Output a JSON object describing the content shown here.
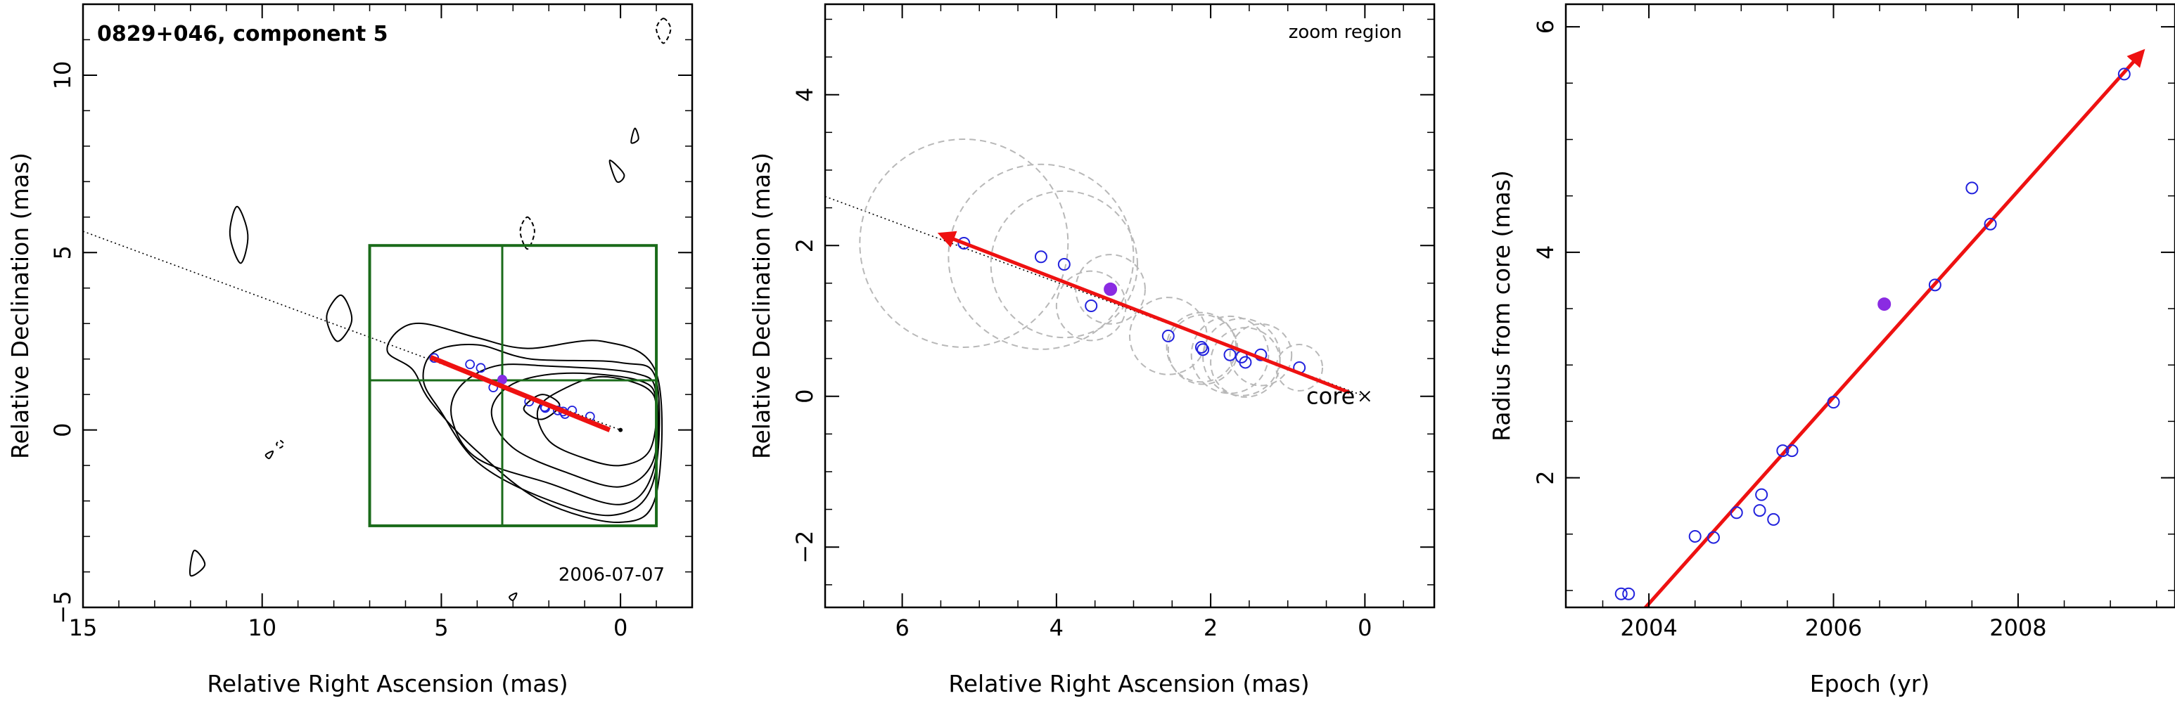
{
  "figure": {
    "colors": {
      "axes": "#000000",
      "contour": "#000000",
      "box": "#1a6b1a",
      "trajectory": "#ee1111",
      "observed": "#2222dd",
      "highlight": "#8a2be2",
      "error_circle": "#b8b8b8",
      "extrapolation": "#000000"
    },
    "panel1": {
      "title": "0829+046, component 5",
      "epoch": "2006-07-07"
    },
    "panel2": {
      "annotation": "zoom region",
      "core_label": "core"
    }
  },
  "chart_data": [
    {
      "type": "scatter",
      "title": "0829+046, component 5",
      "xlabel": "Relative Right Ascension (mas)",
      "ylabel": "Relative Declination (mas)",
      "xlim": [
        15,
        -2
      ],
      "ylim": [
        -5,
        12
      ],
      "xticks": [
        15,
        10,
        5,
        0
      ],
      "yticks": [
        -5,
        0,
        5,
        10
      ],
      "annotations": [
        "2006-07-07"
      ],
      "contours": [
        [
          [
            0.0,
            -1.0
          ],
          [
            -0.8,
            -0.6
          ],
          [
            -1.0,
            0.6
          ],
          [
            -0.7,
            1.2
          ],
          [
            0.5,
            1.5
          ],
          [
            1.5,
            1.2
          ],
          [
            2.3,
            0.6
          ],
          [
            2.0,
            -0.3
          ],
          [
            1.0,
            -0.8
          ]
        ],
        [
          [
            0.0,
            -1.6
          ],
          [
            -0.9,
            -0.9
          ],
          [
            -1.0,
            0.8
          ],
          [
            -0.5,
            1.4
          ],
          [
            1.5,
            1.6
          ],
          [
            3.0,
            1.3
          ],
          [
            3.6,
            0.5
          ],
          [
            3.0,
            -0.5
          ],
          [
            1.5,
            -1.2
          ]
        ],
        [
          [
            0.0,
            -2.1
          ],
          [
            -0.9,
            -1.2
          ],
          [
            -1.0,
            1.0
          ],
          [
            -0.4,
            1.6
          ],
          [
            2.0,
            1.8
          ],
          [
            3.5,
            1.8
          ],
          [
            4.5,
            1.2
          ],
          [
            4.7,
            0.3
          ],
          [
            4.0,
            -0.8
          ],
          [
            2.0,
            -1.5
          ]
        ],
        [
          [
            0.2,
            -2.4
          ],
          [
            -0.9,
            -1.5
          ],
          [
            -1.0,
            1.4
          ],
          [
            0.0,
            1.9
          ],
          [
            2.5,
            2.0
          ],
          [
            4.0,
            2.4
          ],
          [
            5.2,
            2.2
          ],
          [
            5.5,
            1.4
          ],
          [
            5.0,
            0.5
          ],
          [
            4.0,
            -0.9
          ],
          [
            2.2,
            -1.9
          ]
        ],
        [
          [
            0.0,
            -2.6
          ],
          [
            -1.0,
            -1.8
          ],
          [
            -1.0,
            1.6
          ],
          [
            0.5,
            2.5
          ],
          [
            2.6,
            2.3
          ],
          [
            4.0,
            2.6
          ],
          [
            5.5,
            3.0
          ],
          [
            6.2,
            2.8
          ],
          [
            6.5,
            2.2
          ],
          [
            5.8,
            1.7
          ],
          [
            5.3,
            0.8
          ],
          [
            4.0,
            -0.6
          ],
          [
            2.2,
            -2.0
          ]
        ],
        [
          [
            2.7,
            0.6
          ],
          [
            2.2,
            1.0
          ],
          [
            1.7,
            0.7
          ],
          [
            2.2,
            0.3
          ]
        ]
      ],
      "dashed_contours": [
        [
          [
            2.6,
            6.0
          ],
          [
            2.4,
            5.6
          ],
          [
            2.6,
            5.1
          ],
          [
            2.8,
            5.6
          ]
        ],
        [
          [
            -1.2,
            11.6
          ],
          [
            -1.4,
            11.3
          ],
          [
            -1.2,
            10.9
          ],
          [
            -1.0,
            11.3
          ]
        ],
        [
          [
            9.5,
            -0.3
          ],
          [
            9.4,
            -0.4
          ],
          [
            9.5,
            -0.5
          ],
          [
            9.6,
            -0.4
          ]
        ]
      ],
      "box": {
        "ra": [
          7,
          -1
        ],
        "dec": [
          -2.7,
          5.2
        ],
        "cross_ra": 3.3,
        "cross_dec": 1.4
      },
      "extrapolation": [
        [
          15,
          5.6
        ],
        [
          0,
          0
        ]
      ],
      "trajectory": [
        [
          5.3,
          2.05
        ],
        [
          0.3,
          0.0
        ]
      ],
      "points": [
        [
          0.85,
          0.38
        ],
        [
          1.35,
          0.55
        ],
        [
          1.55,
          0.45
        ],
        [
          1.6,
          0.52
        ],
        [
          1.75,
          0.55
        ],
        [
          2.1,
          0.62
        ],
        [
          2.12,
          0.65
        ],
        [
          2.55,
          0.8
        ],
        [
          3.3,
          1.42
        ],
        [
          3.55,
          1.2
        ],
        [
          3.9,
          1.75
        ],
        [
          4.2,
          1.85
        ],
        [
          5.2,
          2.03
        ]
      ],
      "highlight_point": [
        3.3,
        1.42
      ]
    },
    {
      "type": "scatter",
      "xlabel": "Relative Right Ascension (mas)",
      "ylabel": "Relative Declination (mas)",
      "xlim": [
        7,
        -0.9
      ],
      "ylim": [
        -2.8,
        5.2
      ],
      "xticks": [
        6,
        4,
        2,
        0
      ],
      "yticks": [
        -2,
        0,
        2,
        4
      ],
      "annotations": [
        "zoom region",
        "core"
      ],
      "extrapolation": [
        [
          7,
          2.65
        ],
        [
          0,
          0
        ]
      ],
      "trajectory": [
        [
          5.5,
          2.15
        ],
        [
          0.2,
          0.05
        ]
      ],
      "points": [
        {
          "x": 5.2,
          "y": 2.03,
          "r": 1.35
        },
        {
          "x": 4.2,
          "y": 1.85,
          "r": 1.2
        },
        {
          "x": 3.9,
          "y": 1.75,
          "r": 0.95
        },
        {
          "x": 3.55,
          "y": 1.2,
          "r": 0.45
        },
        {
          "x": 3.3,
          "y": 1.42,
          "r": 0.45,
          "highlight": true
        },
        {
          "x": 2.55,
          "y": 0.8,
          "r": 0.5
        },
        {
          "x": 2.12,
          "y": 0.65,
          "r": 0.45
        },
        {
          "x": 2.1,
          "y": 0.62,
          "r": 0.45
        },
        {
          "x": 1.75,
          "y": 0.55,
          "r": 0.5
        },
        {
          "x": 1.6,
          "y": 0.52,
          "r": 0.5
        },
        {
          "x": 1.55,
          "y": 0.45,
          "r": 0.45
        },
        {
          "x": 1.35,
          "y": 0.55,
          "r": 0.4
        },
        {
          "x": 0.85,
          "y": 0.38,
          "r": 0.3
        }
      ]
    },
    {
      "type": "scatter",
      "xlabel": "Epoch (yr)",
      "ylabel": "Radius from core (mas)",
      "xlim": [
        2003.1,
        2009.7
      ],
      "ylim": [
        0.85,
        6.2
      ],
      "xticks": [
        2004,
        2006,
        2008
      ],
      "yticks": [
        2,
        4,
        6
      ],
      "fit_line": [
        [
          2003.8,
          0.7
        ],
        [
          2009.35,
          5.78
        ]
      ],
      "points": [
        [
          2003.7,
          0.97
        ],
        [
          2003.78,
          0.97
        ],
        [
          2004.5,
          1.48
        ],
        [
          2004.7,
          1.47
        ],
        [
          2004.95,
          1.69
        ],
        [
          2005.2,
          1.71
        ],
        [
          2005.22,
          1.85
        ],
        [
          2005.35,
          1.63
        ],
        [
          2005.45,
          2.24
        ],
        [
          2005.55,
          2.24
        ],
        [
          2006.0,
          2.67
        ],
        [
          2006.55,
          3.54
        ],
        [
          2007.1,
          3.71
        ],
        [
          2007.5,
          4.57
        ],
        [
          2007.7,
          4.25
        ],
        [
          2009.15,
          5.58
        ]
      ],
      "highlight_point": [
        2006.55,
        3.54
      ]
    }
  ]
}
